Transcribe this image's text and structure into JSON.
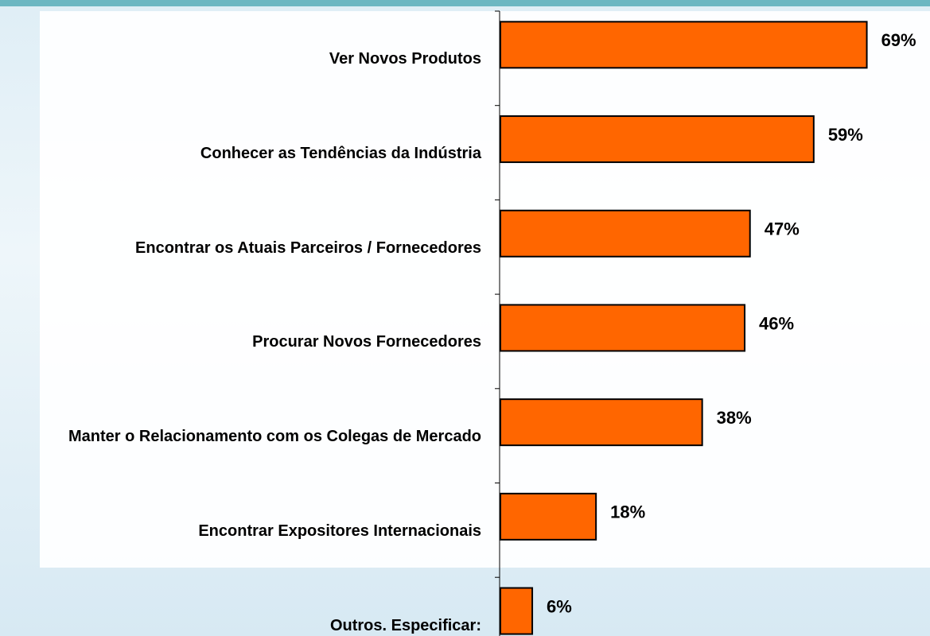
{
  "chart_data": {
    "type": "barh",
    "categories": [
      "Ver Novos Produtos",
      "Conhecer as Tendências da Indústria",
      "Encontrar os Atuais Parceiros / Fornecedores",
      "Procurar Novos Fornecedores",
      "Manter o Relacionamento com os Colegas de Mercado",
      "Encontrar Expositores Internacionais",
      "Outros. Especificar:"
    ],
    "values": [
      69,
      59,
      47,
      46,
      38,
      18,
      6
    ],
    "value_labels": [
      "69%",
      "59%",
      "47%",
      "46%",
      "38%",
      "18%",
      "6%"
    ],
    "color": "#ff6600",
    "xlim": [
      0,
      80
    ]
  }
}
